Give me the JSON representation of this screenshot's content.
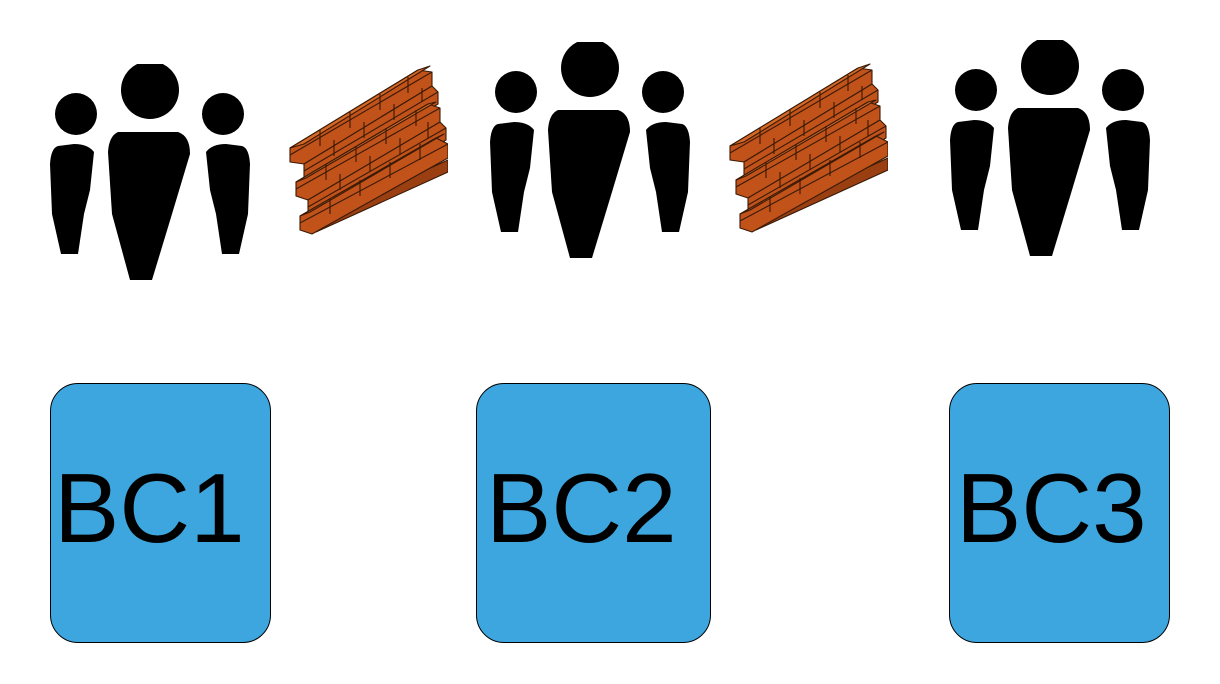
{
  "colors": {
    "context_box_fill": "#3ea6de",
    "context_box_border": "#000000",
    "brick_fill": "#c1521a",
    "brick_outline": "#3a1a06",
    "people_fill": "#000000"
  },
  "icons": {
    "team": "people-group-icon",
    "barrier": "brick-wall-icon"
  },
  "contexts": [
    {
      "label": "BC1"
    },
    {
      "label": "BC2"
    },
    {
      "label": "BC3"
    }
  ]
}
